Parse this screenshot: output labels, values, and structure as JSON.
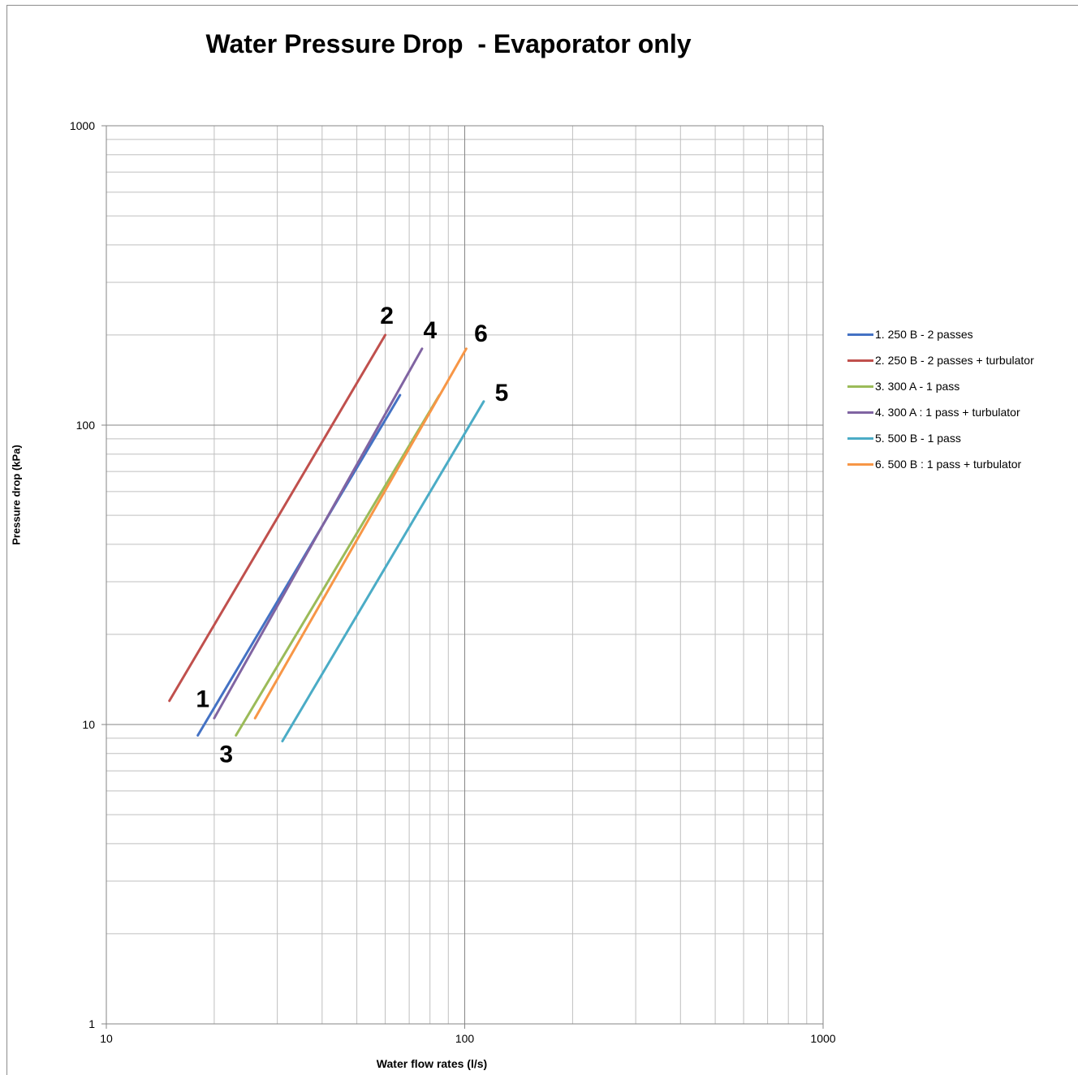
{
  "chart_data": {
    "type": "line",
    "title": "Water Pressure Drop  - Evaporator only",
    "xlabel": "Water flow rates (l/s)",
    "ylabel": "Pressure drop (kPa)",
    "x_scale": "log",
    "y_scale": "log",
    "xlim": [
      10,
      1000
    ],
    "ylim": [
      1,
      1000
    ],
    "x_ticks": [
      "10",
      "100",
      "1000"
    ],
    "y_ticks": [
      "1",
      "10",
      "100",
      "1000"
    ],
    "grid": true,
    "legend_position": "right",
    "series": [
      {
        "name": "1.  250 B - 2 passes",
        "label": "1",
        "color": "#4472c4",
        "x": [
          18,
          66
        ],
        "y": [
          9.2,
          126
        ]
      },
      {
        "name": "2.  250 B - 2 passes + turbulator",
        "label": "2",
        "color": "#c0504d",
        "x": [
          15,
          60
        ],
        "y": [
          12,
          200
        ]
      },
      {
        "name": "3.  300 A - 1 pass",
        "label": "3",
        "color": "#9bbb59",
        "x": [
          23,
          85
        ],
        "y": [
          9.2,
          126
        ]
      },
      {
        "name": "4.  300 A : 1 pass + turbulator",
        "label": "4",
        "color": "#8064a2",
        "x": [
          20,
          76
        ],
        "y": [
          10.5,
          180
        ]
      },
      {
        "name": "5.  500 B - 1 pass",
        "label": "5",
        "color": "#4bacc6",
        "x": [
          31,
          113
        ],
        "y": [
          8.8,
          120
        ]
      },
      {
        "name": "6.  500 B : 1 pass + turbulator",
        "label": "6",
        "color": "#f79646",
        "x": [
          26,
          101
        ],
        "y": [
          10.5,
          180
        ]
      }
    ]
  }
}
